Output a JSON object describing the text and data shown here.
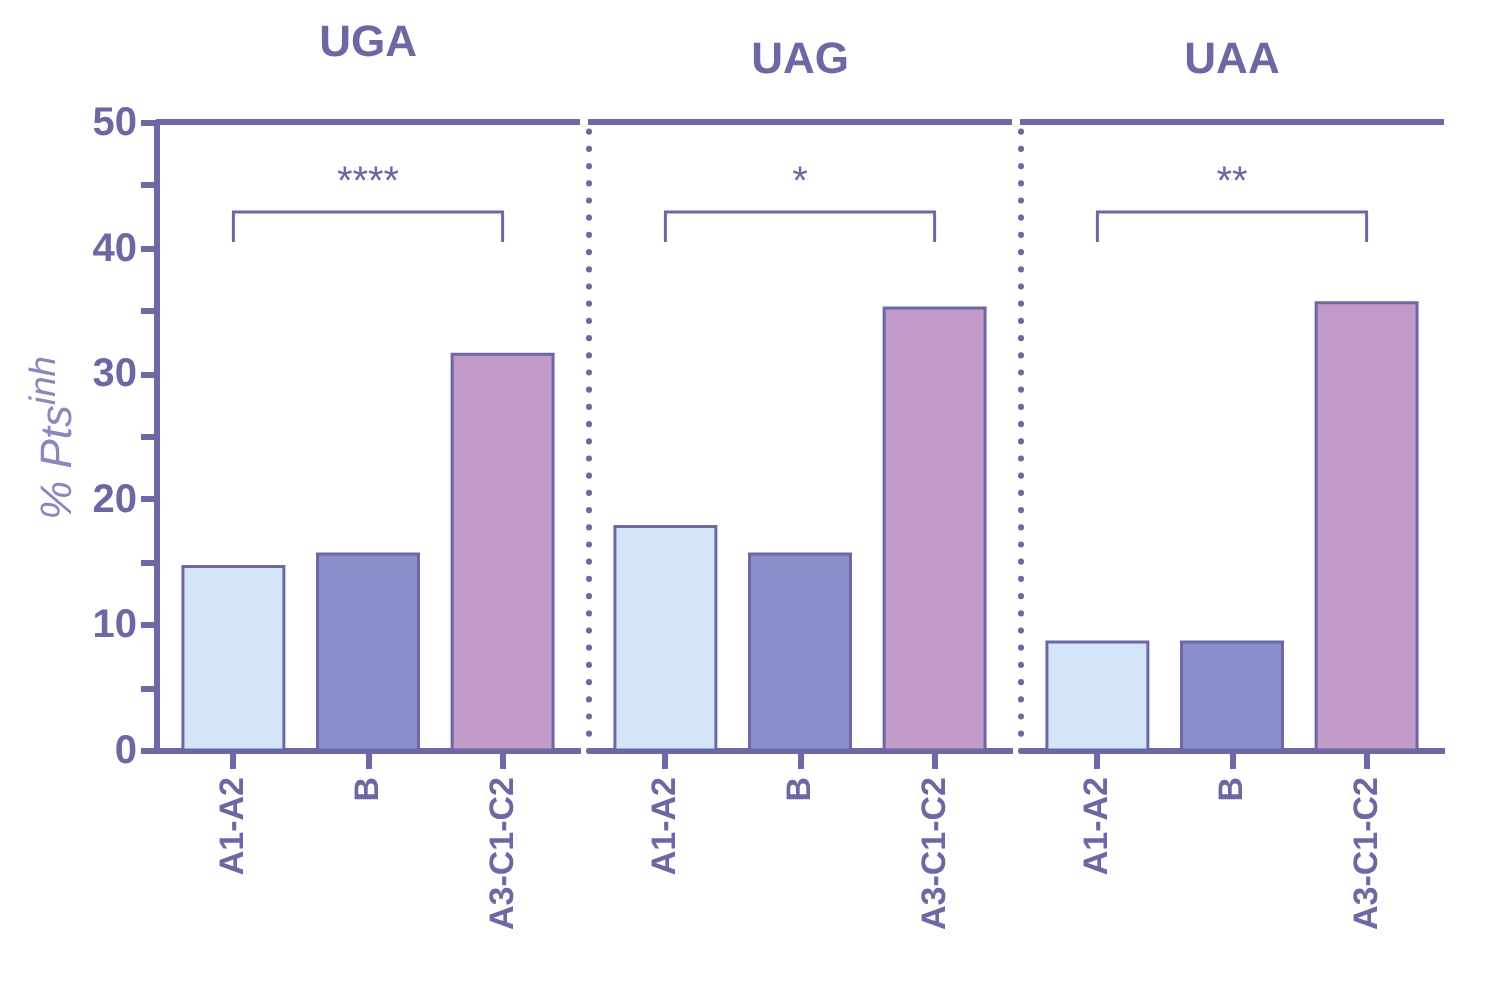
{
  "chart_data": [
    {
      "type": "bar",
      "title": "UGA",
      "ylabel": "% Pts$^{inh}$",
      "categories": [
        "A1-A2",
        "B",
        "A3-C1-C2"
      ],
      "values": [
        14.6,
        15.6,
        31.5
      ],
      "colors": [
        "#d4e5f9",
        "#8a8fcb",
        "#c19aca"
      ],
      "ylim": [
        0,
        50
      ],
      "yticks": [
        0,
        {
          "value": 5,
          "label": null
        },
        10,
        {
          "value": 15,
          "label": null
        },
        20,
        {
          "value": 25,
          "label": null
        },
        30,
        {
          "value": 35,
          "label": null
        },
        40,
        {
          "value": 45,
          "label": null
        },
        50
      ],
      "annotations": [
        "****"
      ]
    },
    {
      "type": "bar",
      "title": "UAG",
      "categories": [
        "A1-A2",
        "B",
        "A3-C1-C2"
      ],
      "values": [
        17.8,
        15.6,
        35.2
      ],
      "colors": [
        "#d4e5f9",
        "#8a8fcb",
        "#c19aca"
      ],
      "ylim": [
        0,
        50
      ],
      "tick_labels": "x",
      "annotations": [
        "*"
      ]
    },
    {
      "type": "bar",
      "title": "UAA",
      "categories": [
        "A1-A2",
        "B",
        "A3-C1-C2"
      ],
      "values": [
        8.6,
        8.6,
        35.6
      ],
      "colors": [
        "#d4e5f9",
        "#8a8fcb",
        "#c19aca"
      ],
      "ylim": [
        0,
        50
      ],
      "tick_labels": "x",
      "annotations": [
        "**"
      ]
    }
  ]
}
